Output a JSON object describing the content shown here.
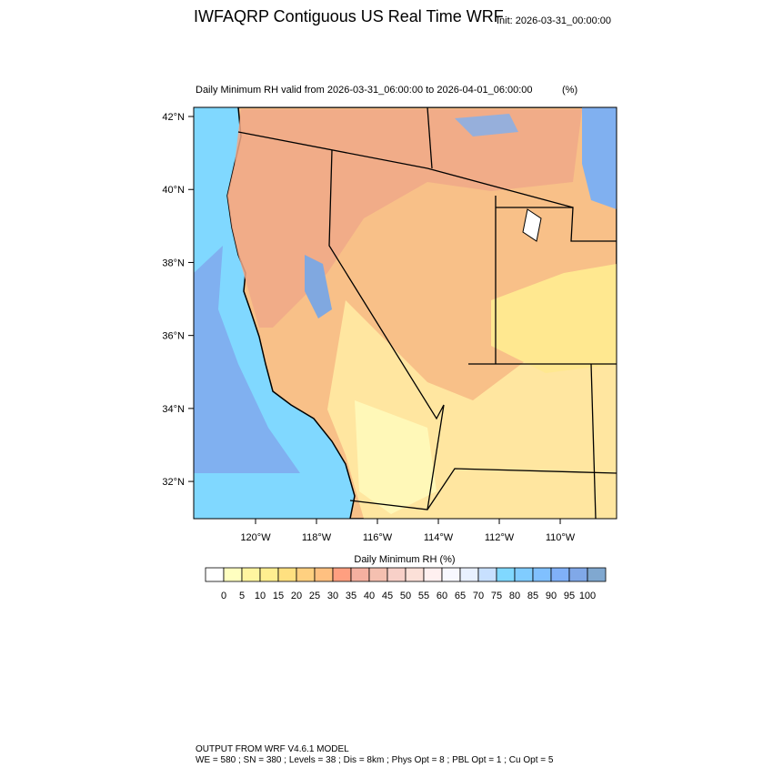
{
  "header": {
    "title": "IWFAQRP Contiguous US Real Time WRF",
    "init": "Init: 2026-03-31_00:00:00"
  },
  "map": {
    "subtitle": "Daily Minimum RH valid from 2026-03-31_06:00:00 to 2026-04-01_06:00:00",
    "subtitle_units": "(%)",
    "xlim": [
      -122.03,
      -108.15
    ],
    "ylim": [
      30.98,
      42.25
    ],
    "xticks": [
      {
        "value": -120,
        "label": "120°W"
      },
      {
        "value": -118,
        "label": "118°W"
      },
      {
        "value": -116,
        "label": "116°W"
      },
      {
        "value": -114,
        "label": "114°W"
      },
      {
        "value": -112,
        "label": "112°W"
      },
      {
        "value": -110,
        "label": "110°W"
      }
    ],
    "yticks": [
      {
        "value": 32,
        "label": "32°N"
      },
      {
        "value": 34,
        "label": "34°N"
      },
      {
        "value": 36,
        "label": "36°N"
      },
      {
        "value": 38,
        "label": "38°N"
      },
      {
        "value": 40,
        "label": "40°N"
      },
      {
        "value": 42,
        "label": "42°N"
      }
    ]
  },
  "colorbar": {
    "label": "Daily Minimum RH  (%)",
    "levels": [
      0,
      5,
      10,
      15,
      20,
      25,
      30,
      35,
      40,
      45,
      50,
      55,
      60,
      65,
      70,
      75,
      80,
      85,
      90,
      95,
      100
    ],
    "colors": [
      "#ffffff",
      "#ffffc0",
      "#fff5a0",
      "#ffee90",
      "#ffe080",
      "#ffd080",
      "#ffc080",
      "#ff9f80",
      "#f5b0a0",
      "#f5c0b0",
      "#f8d0c8",
      "#fce0d8",
      "#fff0f0",
      "#f8f8ff",
      "#e8f0ff",
      "#c8e0ff",
      "#80d8ff",
      "#80ccff",
      "#80c0ff",
      "#80b0f8",
      "#80a8e8",
      "#80a8d0"
    ]
  },
  "footer": {
    "line1": "OUTPUT FROM WRF V4.6.1 MODEL",
    "line2": "WE = 580 ; SN = 380 ; Levels = 38 ; Dis = 8km ; Phys Opt = 8 ; PBL Opt = 1 ; Cu Opt = 5"
  }
}
